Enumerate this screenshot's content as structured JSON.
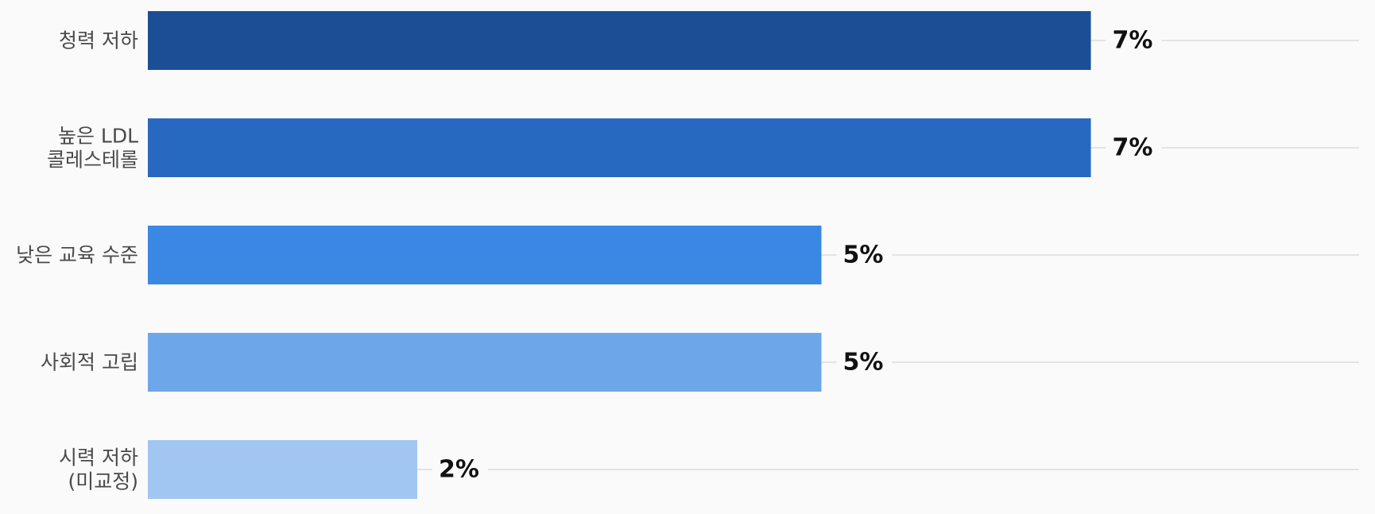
{
  "chart_data": {
    "type": "bar",
    "orientation": "horizontal",
    "categories": [
      [
        "청력 저하"
      ],
      [
        "높은 LDL",
        "콜레스테롤"
      ],
      [
        "낮은 교육 수준"
      ],
      [
        "사회적 고립"
      ],
      [
        "시력 저하",
        "(미교정)"
      ]
    ],
    "values": [
      7,
      7,
      5,
      5,
      2
    ],
    "value_labels": [
      "7%",
      "7%",
      "5%",
      "5%",
      "2%"
    ],
    "colors": [
      "#1a4f96",
      "#2769c0",
      "#3a88e3",
      "#6ea6ea",
      "#a2c6f2"
    ],
    "xlim": [
      0,
      10
    ],
    "title": "",
    "xlabel": "",
    "ylabel": "",
    "grid": false,
    "legend": "none"
  }
}
